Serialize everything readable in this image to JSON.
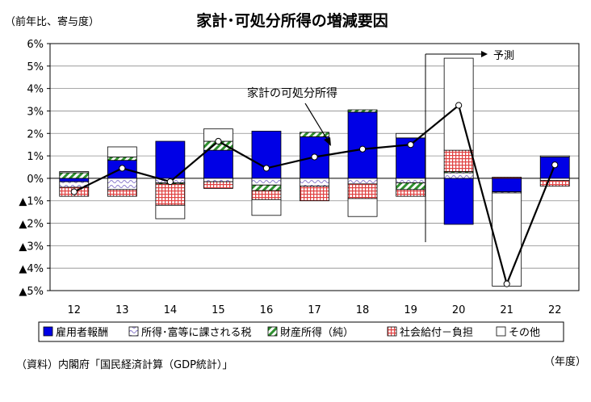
{
  "chart_data": {
    "type": "bar",
    "title": "家計･可処分所得の増減要因",
    "unit_label": "（前年比、寄与度）",
    "x_axis_unit": "（年度）",
    "source": "（資料）内閣府「国民経済計算（GDP統計）」",
    "categories": [
      "12",
      "13",
      "14",
      "15",
      "16",
      "17",
      "18",
      "19",
      "20",
      "21",
      "22"
    ],
    "ylim": [
      -5,
      6
    ],
    "yticks": [
      {
        "value": 6,
        "label": "6%"
      },
      {
        "value": 5,
        "label": "5%"
      },
      {
        "value": 4,
        "label": "4%"
      },
      {
        "value": 3,
        "label": "3%"
      },
      {
        "value": 2,
        "label": "2%"
      },
      {
        "value": 1,
        "label": "1%"
      },
      {
        "value": 0,
        "label": "0%"
      },
      {
        "value": -1,
        "label": "▲1%"
      },
      {
        "value": -2,
        "label": "▲2%"
      },
      {
        "value": -3,
        "label": "▲3%"
      },
      {
        "value": -4,
        "label": "▲4%"
      },
      {
        "value": -5,
        "label": "▲5%"
      }
    ],
    "grid": true,
    "stacked": true,
    "series": [
      {
        "name": "雇用者報酬",
        "color": "#0000e6",
        "values": [
          -0.15,
          0.8,
          1.65,
          1.25,
          2.1,
          1.85,
          2.95,
          1.8,
          -2.05,
          -0.6,
          0.95
        ]
      },
      {
        "name": "所得･富等に課される税",
        "color": "#d9ccf0",
        "values": [
          -0.25,
          -0.5,
          -0.2,
          -0.15,
          -0.3,
          -0.35,
          -0.25,
          -0.2,
          0.25,
          -0.05,
          -0.1
        ]
      },
      {
        "name": "財産所得（純）",
        "color": "#3a9a3a",
        "values": [
          0.25,
          0.15,
          -0.05,
          0.4,
          -0.25,
          0.2,
          0.1,
          -0.3,
          0.05,
          0.0,
          0.0
        ]
      },
      {
        "name": "社会給付－負担",
        "color": "#e05050",
        "values": [
          -0.4,
          -0.3,
          -0.95,
          -0.3,
          -0.4,
          -0.65,
          -0.65,
          -0.3,
          0.95,
          0.05,
          -0.25
        ]
      },
      {
        "name": "その他",
        "color": "#ffffff",
        "values": [
          0.05,
          0.45,
          -0.6,
          0.55,
          -0.7,
          0.0,
          -0.8,
          0.2,
          4.1,
          -4.15,
          0.05
        ]
      }
    ],
    "line_series": {
      "name": "家計の可処分所得",
      "values": [
        -0.6,
        0.45,
        -0.15,
        1.65,
        0.45,
        0.95,
        1.3,
        1.5,
        3.25,
        -4.7,
        0.6
      ]
    },
    "annotations": {
      "line_label": "家計の可処分所得",
      "forecast_label": "予測",
      "forecast_start_category": "20"
    },
    "legend_placement": "bottom"
  }
}
